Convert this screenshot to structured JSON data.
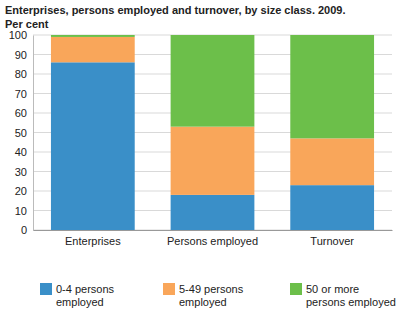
{
  "chart_data": {
    "type": "bar",
    "title": "Enterprises, persons employed and turnover, by size class. 2009.",
    "subtitle": "Per cent",
    "categories": [
      "Enterprises",
      "Persons employed",
      "Turnover"
    ],
    "series": [
      {
        "name": "0-4 persons employed",
        "color": "#3a8fc8",
        "values": [
          86,
          18,
          23
        ]
      },
      {
        "name": "5-49 persons employed",
        "color": "#f9a65a",
        "values": [
          13,
          35,
          24
        ]
      },
      {
        "name": "50 or more persons employed",
        "color": "#6cbf4a",
        "values": [
          1,
          47,
          53
        ]
      }
    ],
    "stacked": true,
    "ylim": [
      0,
      100
    ],
    "yticks": [
      0,
      10,
      20,
      30,
      40,
      50,
      60,
      70,
      80,
      90,
      100
    ],
    "grid": true,
    "legend": "bottom"
  }
}
